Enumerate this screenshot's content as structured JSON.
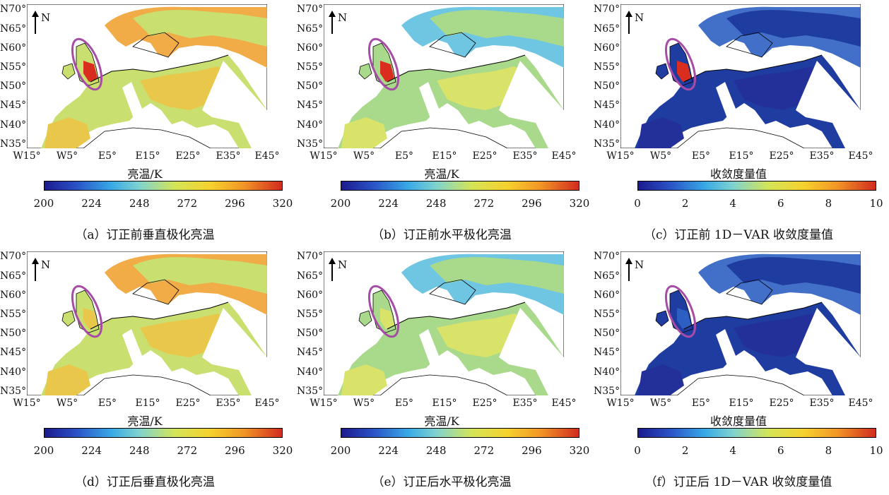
{
  "panels": [
    {
      "id": "a",
      "colorbar_label": "亮温/K",
      "ticks": [
        "200",
        "224",
        "248",
        "272",
        "296",
        "320"
      ],
      "caption": "（a）订正前垂直极化亮温",
      "variant": "tb-v"
    },
    {
      "id": "b",
      "colorbar_label": "亮温/K",
      "ticks": [
        "200",
        "224",
        "248",
        "272",
        "296",
        "320"
      ],
      "caption": "（b）订正前水平极化亮温",
      "variant": "tb-h"
    },
    {
      "id": "c",
      "colorbar_label": "收敛度量值",
      "ticks": [
        "0",
        "2",
        "4",
        "6",
        "8",
        "10"
      ],
      "caption": "（c）订正前 1D－VAR 收敛度量值",
      "variant": "conv"
    },
    {
      "id": "d",
      "colorbar_label": "亮温/K",
      "ticks": [
        "200",
        "224",
        "248",
        "272",
        "296",
        "320"
      ],
      "caption": "（d）订正后垂直极化亮温",
      "variant": "tb-v"
    },
    {
      "id": "e",
      "colorbar_label": "亮温/K",
      "ticks": [
        "200",
        "224",
        "248",
        "272",
        "296",
        "320"
      ],
      "caption": "（e）订正后水平极化亮温",
      "variant": "tb-h"
    },
    {
      "id": "f",
      "colorbar_label": "收敛度量值",
      "ticks": [
        "0",
        "2",
        "4",
        "6",
        "8",
        "10"
      ],
      "caption": "（f）订正后 1D－VAR 收敛度量值",
      "variant": "conv"
    }
  ],
  "lat_labels": [
    "N70°",
    "N65°",
    "N60°",
    "N55°",
    "N50°",
    "N45°",
    "N40°",
    "N35°"
  ],
  "lon_labels": [
    "W15°",
    "W5°",
    "E5°",
    "E15°",
    "E25°",
    "E35°",
    "E45°"
  ],
  "north_label": "N",
  "colors": {
    "highlight_ellipse": "#a64ca6",
    "colormap_low": "#1c1a8e",
    "colormap_high": "#d22b1f"
  }
}
